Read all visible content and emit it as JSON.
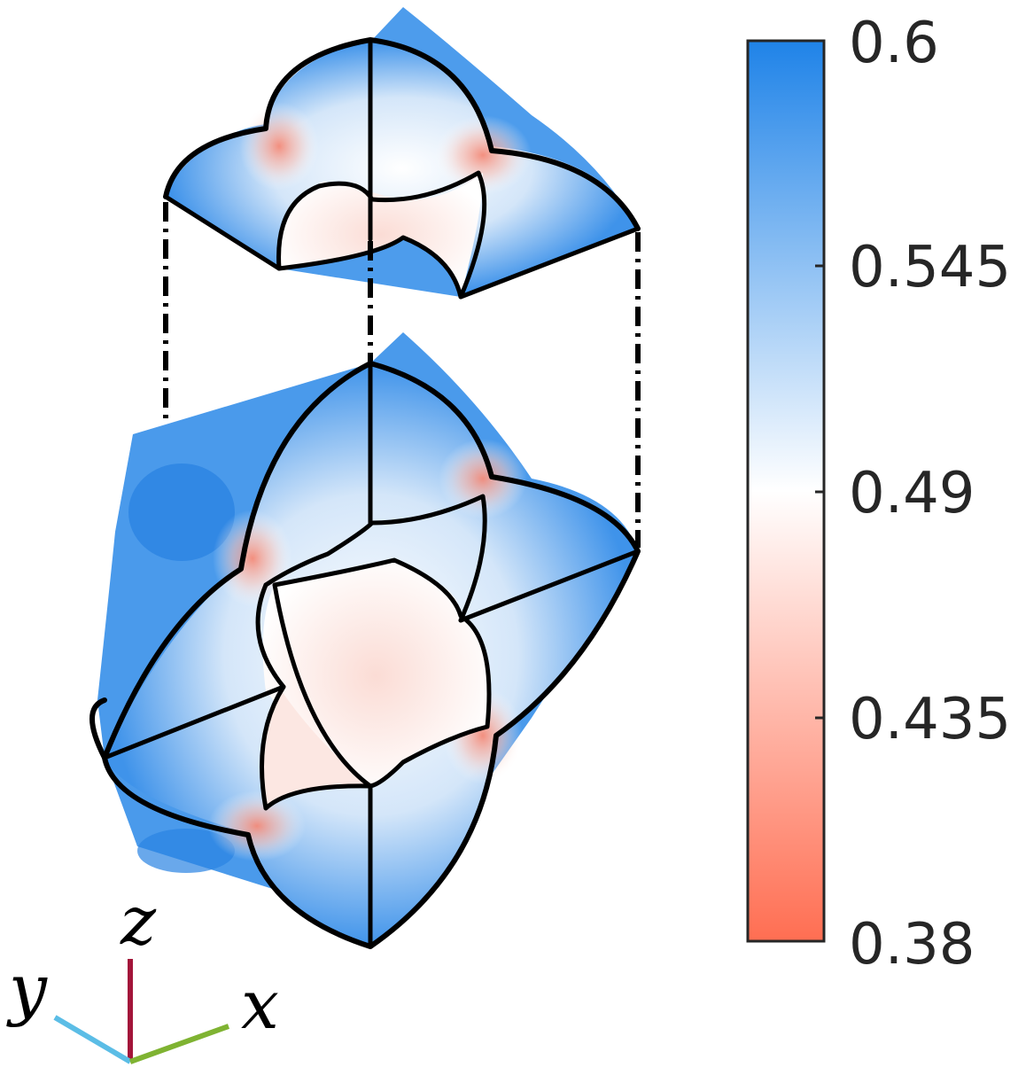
{
  "colorbar": {
    "max_label": "0.6",
    "tick2_label": "0.545",
    "mid_label": "0.49",
    "tick4_label": "0.435",
    "min_label": "0.38",
    "color_max": "#1f83e8",
    "color_mid": "#ffffff",
    "color_min": "#ff6e52"
  },
  "axes": {
    "z_label": "z",
    "y_label": "y",
    "x_label": "x",
    "z_color": "#a3153a",
    "y_color": "#5bbde6",
    "x_color": "#7fb332"
  }
}
